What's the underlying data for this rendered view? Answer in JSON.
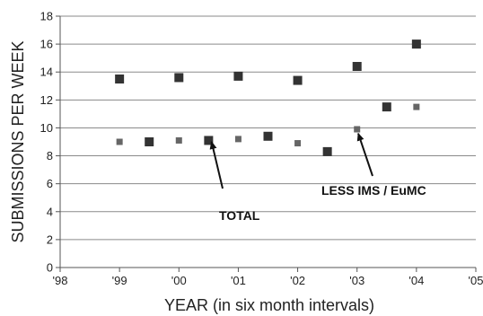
{
  "chart_data": {
    "type": "scatter",
    "title": "",
    "xlabel": "YEAR (in six month intervals)",
    "ylabel": "SUBMISSIONS PER WEEK",
    "xlim": [
      1998,
      2005
    ],
    "ylim": [
      0,
      18
    ],
    "x_ticks": [
      {
        "value": 1998,
        "label": "'98"
      },
      {
        "value": 1999,
        "label": "'99"
      },
      {
        "value": 2000,
        "label": "'00"
      },
      {
        "value": 2001,
        "label": "'01"
      },
      {
        "value": 2002,
        "label": "'02"
      },
      {
        "value": 2003,
        "label": "'03"
      },
      {
        "value": 2004,
        "label": "'04"
      },
      {
        "value": 2005,
        "label": "'05"
      }
    ],
    "y_ticks": [
      0,
      2,
      4,
      6,
      8,
      10,
      12,
      14,
      16,
      18
    ],
    "grid": "horizontal",
    "series": [
      {
        "name": "TOTAL",
        "color": "#333333",
        "marker": "large-square",
        "points": [
          {
            "x": 1999.0,
            "y": 13.5
          },
          {
            "x": 1999.5,
            "y": 9.0
          },
          {
            "x": 2000.0,
            "y": 13.6
          },
          {
            "x": 2000.5,
            "y": 9.1
          },
          {
            "x": 2001.0,
            "y": 13.7
          },
          {
            "x": 2001.5,
            "y": 9.4
          },
          {
            "x": 2002.0,
            "y": 13.4
          },
          {
            "x": 2002.5,
            "y": 8.3
          },
          {
            "x": 2003.0,
            "y": 14.4
          },
          {
            "x": 2003.5,
            "y": 11.5
          },
          {
            "x": 2004.0,
            "y": 16.0
          }
        ]
      },
      {
        "name": "LESS IMS / EuMC",
        "color": "#666666",
        "marker": "small-square",
        "points": [
          {
            "x": 1999.0,
            "y": 9.0
          },
          {
            "x": 2000.0,
            "y": 9.1
          },
          {
            "x": 2001.0,
            "y": 9.2
          },
          {
            "x": 2002.0,
            "y": 8.9
          },
          {
            "x": 2003.0,
            "y": 9.9
          },
          {
            "x": 2004.0,
            "y": 11.5
          }
        ]
      }
    ],
    "annotations": [
      {
        "id": "total",
        "text": "TOTAL",
        "points_to": {
          "x": 2000.55,
          "y": 9.0
        }
      },
      {
        "id": "less",
        "text": "LESS IMS / EuMC",
        "points_to": {
          "x": 2003.02,
          "y": 9.6
        }
      }
    ]
  }
}
